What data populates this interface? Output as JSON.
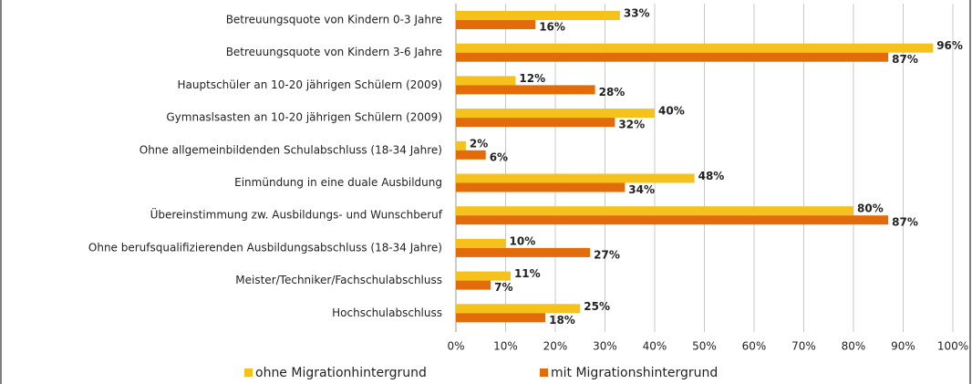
{
  "chart_data": {
    "type": "hbar",
    "categories": [
      "Betreuungsquote von Kindern 0-3 Jahre",
      "Betreuungsquote von Kindern 3-6 Jahre",
      "Hauptschüler an 10-20 jährigen Schülern (2009)",
      "Gymnaslsasten an 10-20 jährigen Schülern (2009)",
      "Ohne allgemeinbildenden Schulabschluss (18-34 Jahre)",
      "Einmündung in eine duale Ausbildung",
      "Übereinstimmung zw. Ausbildungs- und Wunschberuf",
      "Ohne berufsqualifizierenden Ausbildungsabschluss (18-34 Jahre)",
      "Meister/Techniker/Fachschulabschluss",
      "Hochschulabschluss"
    ],
    "series": [
      {
        "name": "ohne Migrationhintergrund",
        "color": "#f5c21b",
        "values": [
          33,
          96,
          12,
          40,
          2,
          48,
          80,
          10,
          11,
          25
        ],
        "value_labels": [
          "33%",
          "96%",
          "12%",
          "40%",
          "2%",
          "48%",
          "80%",
          "10%",
          "11%",
          "25%"
        ]
      },
      {
        "name": "mit Migrationshintergrund",
        "color": "#e36c0a",
        "values": [
          16,
          87,
          28,
          32,
          6,
          34,
          87,
          27,
          7,
          18
        ],
        "value_labels": [
          "16%",
          "87%",
          "28%",
          "32%",
          "6%",
          "34%",
          "87%",
          "27%",
          "7%",
          "18%"
        ]
      }
    ],
    "xlim": [
      0,
      100
    ],
    "xticks": [
      {
        "value": 0,
        "label": "0%"
      },
      {
        "value": 10,
        "label": "10%"
      },
      {
        "value": 20,
        "label": "20%"
      },
      {
        "value": 30,
        "label": "30%"
      },
      {
        "value": 40,
        "label": "40%"
      },
      {
        "value": 50,
        "label": "50%"
      },
      {
        "value": 60,
        "label": "60%"
      },
      {
        "value": 70,
        "label": "70%"
      },
      {
        "value": 80,
        "label": "80%"
      },
      {
        "value": 90,
        "label": "90%"
      },
      {
        "value": 100,
        "label": "100%"
      }
    ],
    "grid": true,
    "legend": "bottom"
  }
}
